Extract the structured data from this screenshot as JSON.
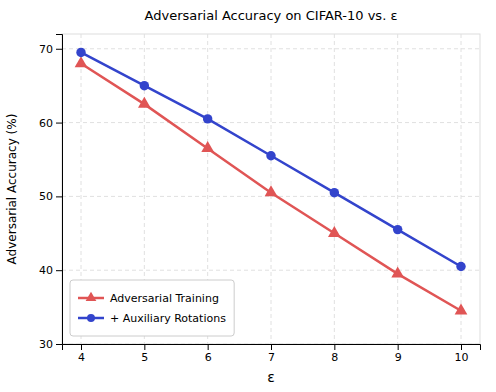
{
  "chart_data": {
    "type": "line",
    "title": "Adversarial Accuracy on CIFAR-10 vs. ε",
    "xlabel": "ε",
    "ylabel": "Adversarial Accuracy (%)",
    "x": [
      4,
      5,
      6,
      7,
      8,
      9,
      10
    ],
    "series": [
      {
        "name": "Adversarial Training",
        "color": "#e05555",
        "marker": "triangle",
        "values": [
          68,
          62.5,
          56.5,
          50.5,
          45,
          39.5,
          34.5
        ]
      },
      {
        "name": "+ Auxiliary Rotations",
        "color": "#3344cc",
        "marker": "circle",
        "values": [
          69.5,
          65,
          60.5,
          55.5,
          50.5,
          45.5,
          40.5
        ]
      }
    ],
    "xlim": [
      3.7,
      10.3
    ],
    "xticks": [
      4,
      5,
      6,
      7,
      8,
      9,
      10
    ],
    "ylim": [
      30,
      72
    ],
    "yticks": [
      30,
      40,
      50,
      60,
      70
    ],
    "grid": true,
    "legend": "lower left"
  }
}
